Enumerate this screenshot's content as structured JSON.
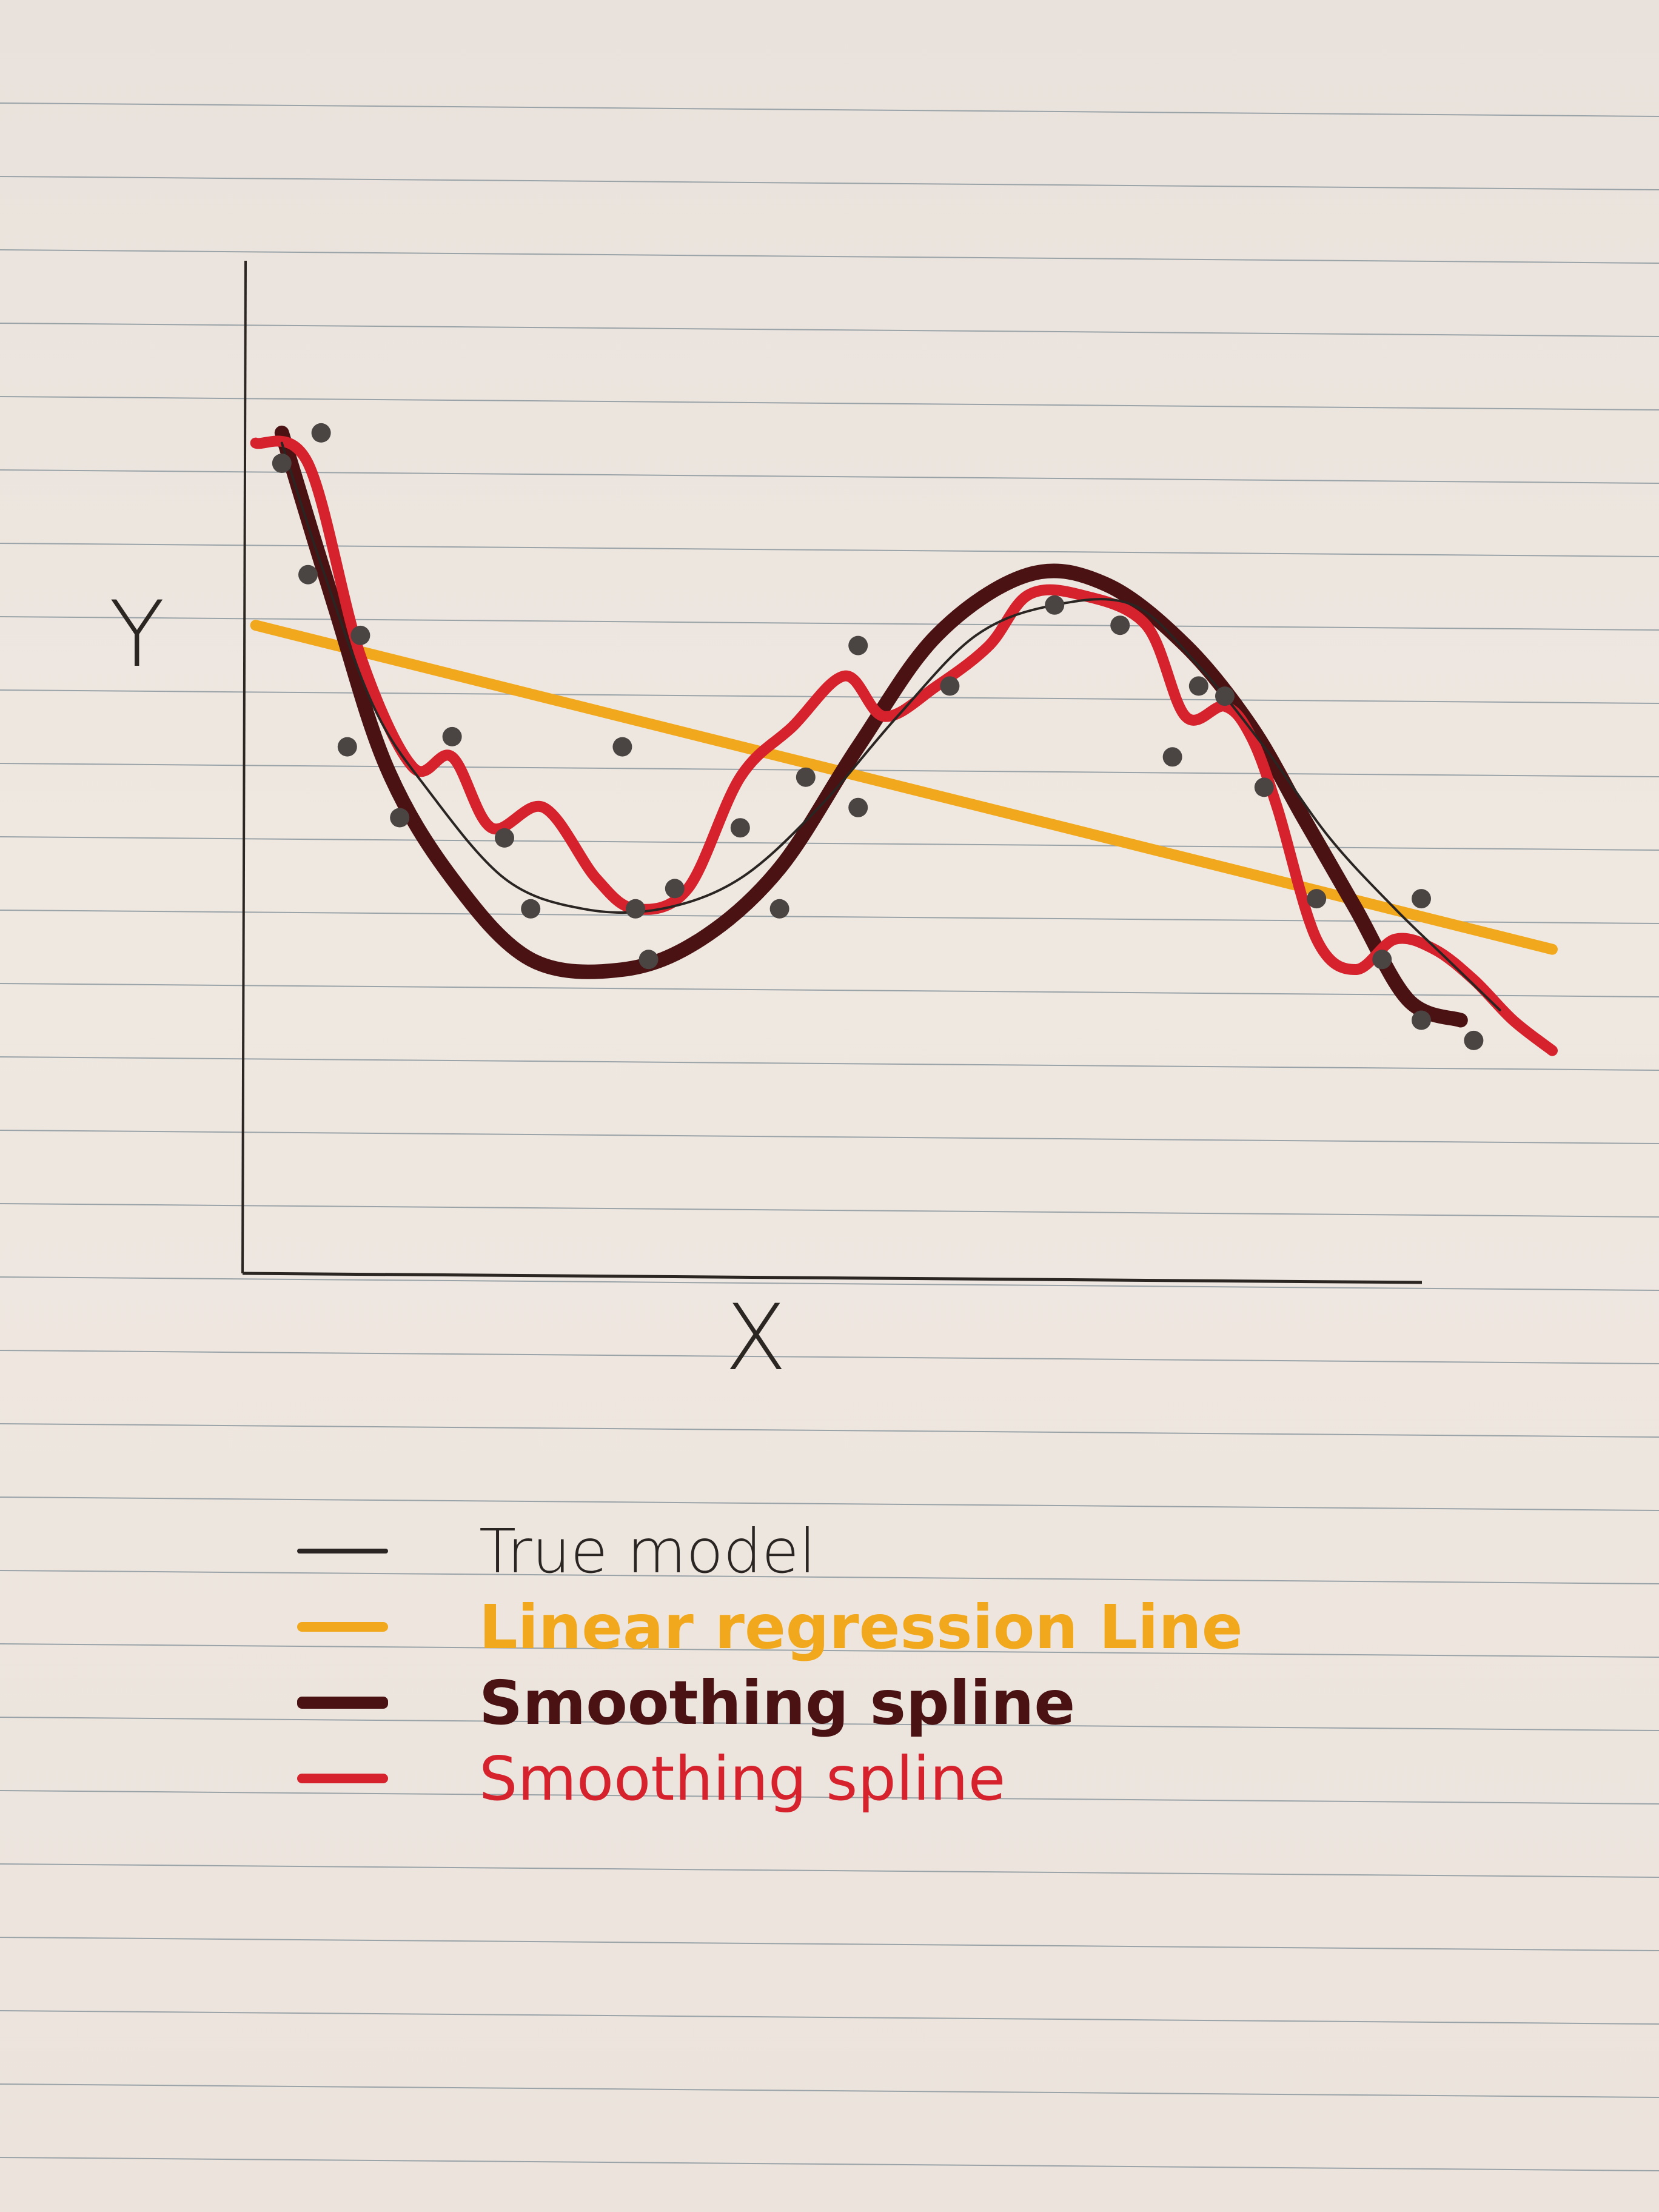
{
  "chart_data": {
    "type": "line",
    "xlabel": "X",
    "ylabel": "Y",
    "title": "",
    "grid": false,
    "legend_placement": "below",
    "xlim": [
      0,
      10
    ],
    "ylim": [
      0,
      10
    ],
    "series": [
      {
        "name": "True model",
        "color": "#2a2522",
        "x": [
          0.3,
          0.6,
          1.0,
          1.4,
          2.0,
          2.6,
          3.2,
          3.8,
          4.4,
          5.0,
          5.6,
          6.2,
          6.8,
          7.3,
          7.8,
          8.3,
          8.8,
          9.2,
          9.6
        ],
        "y": [
          8.2,
          7.0,
          5.6,
          4.8,
          3.9,
          3.6,
          3.6,
          3.9,
          4.6,
          5.5,
          6.3,
          6.6,
          6.6,
          6.0,
          5.2,
          4.3,
          3.6,
          3.1,
          2.6
        ]
      },
      {
        "name": "Linear regression Line",
        "color": "#f2a81d",
        "x": [
          0.1,
          10.0
        ],
        "y": [
          6.4,
          3.2
        ]
      },
      {
        "name": "Smoothing spline",
        "color": "#4a1212",
        "x": [
          0.3,
          0.7,
          1.1,
          1.6,
          2.2,
          2.9,
          3.5,
          4.1,
          4.7,
          5.3,
          6.0,
          6.6,
          7.2,
          7.7,
          8.1,
          8.5,
          8.9,
          9.3
        ],
        "y": [
          8.3,
          6.6,
          5.0,
          3.9,
          3.1,
          3.0,
          3.3,
          4.0,
          5.2,
          6.3,
          6.9,
          6.8,
          6.2,
          5.4,
          4.5,
          3.6,
          2.7,
          2.5
        ]
      },
      {
        "name": "Smoothing spline",
        "color": "#d5222c",
        "x": [
          0.1,
          0.5,
          0.9,
          1.3,
          1.6,
          1.9,
          2.3,
          2.7,
          3.0,
          3.4,
          3.8,
          4.2,
          4.6,
          4.9,
          5.3,
          5.7,
          6.0,
          6.4,
          6.9,
          7.2,
          7.5,
          7.7,
          7.9,
          8.2,
          8.5,
          8.8,
          9.1,
          9.4,
          9.7,
          10.0
        ],
        "y": [
          8.2,
          8.0,
          6.1,
          5.0,
          5.1,
          4.4,
          4.6,
          3.9,
          3.6,
          3.8,
          4.9,
          5.4,
          5.9,
          5.5,
          5.8,
          6.2,
          6.7,
          6.7,
          6.4,
          5.5,
          5.6,
          5.3,
          4.6,
          3.3,
          3.0,
          3.3,
          3.2,
          2.9,
          2.5,
          2.2
        ]
      }
    ],
    "points": {
      "name": "observations",
      "color": "#4a4542",
      "x": [
        0.3,
        0.6,
        0.5,
        0.9,
        0.8,
        1.2,
        1.6,
        2.0,
        2.2,
        2.9,
        3.0,
        3.1,
        3.3,
        3.8,
        4.1,
        4.3,
        4.7,
        4.7,
        5.4,
        6.2,
        6.7,
        7.1,
        7.3,
        7.5,
        7.8,
        8.2,
        8.7,
        9.0,
        9.0,
        9.4
      ],
      "y": [
        8.0,
        8.3,
        6.9,
        6.3,
        5.2,
        4.5,
        5.3,
        4.3,
        3.6,
        5.2,
        3.6,
        3.1,
        3.8,
        4.4,
        3.6,
        4.9,
        6.2,
        4.6,
        5.8,
        6.6,
        6.4,
        5.1,
        5.8,
        5.7,
        4.8,
        3.7,
        3.1,
        3.7,
        2.5,
        2.3
      ]
    }
  },
  "legend": {
    "items": [
      {
        "label": "True model",
        "color": "#2a2522"
      },
      {
        "label": "Linear regression Line",
        "color": "#f2a81d"
      },
      {
        "label": "Smoothing spline",
        "color": "#4a1212"
      },
      {
        "label": "Smoothing spline",
        "color": "#d5222c"
      }
    ]
  }
}
